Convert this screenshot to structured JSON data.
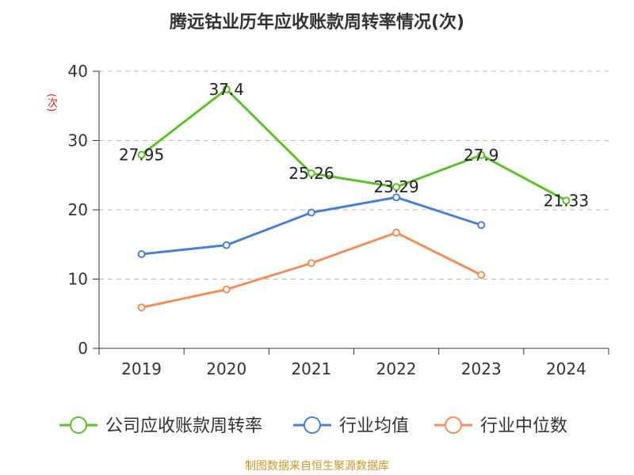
{
  "title": "腾远钴业历年应收账款周转率情况(次)",
  "footer": "制图数据来自恒生聚源数据库",
  "chart_data": {
    "type": "line",
    "title": "腾远钴业历年应收账款周转率情况(次)",
    "ylabel": "(次)",
    "xlabel": "",
    "categories": [
      "2019",
      "2020",
      "2021",
      "2022",
      "2023",
      "2024"
    ],
    "ylim": [
      0,
      40
    ],
    "yticks": [
      0,
      10,
      20,
      30,
      40
    ],
    "grid": true,
    "legend_position": "bottom",
    "series": [
      {
        "name": "公司应收账款周转率",
        "color": "#5ec12b",
        "values": [
          27.95,
          37.4,
          25.26,
          23.29,
          27.9,
          21.33
        ],
        "labels": [
          "27.95",
          "37.4",
          "25.26",
          "23.29",
          "27.9",
          "21.33"
        ]
      },
      {
        "name": "行业均值",
        "color": "#4b7fd6",
        "values": [
          13.6,
          14.9,
          19.6,
          21.8,
          17.8,
          null
        ]
      },
      {
        "name": "行业中位数",
        "color": "#f28e5a",
        "values": [
          5.9,
          8.5,
          12.3,
          16.7,
          10.6,
          null
        ]
      }
    ]
  }
}
